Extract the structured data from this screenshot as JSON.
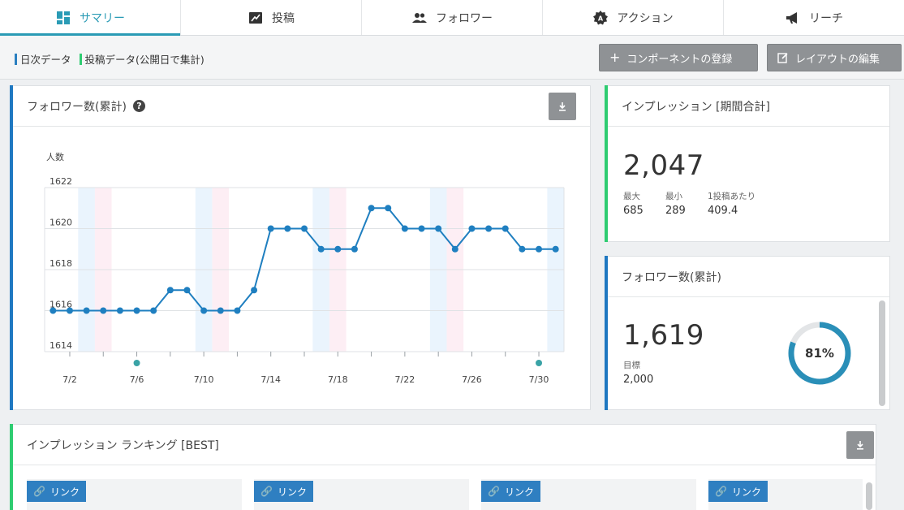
{
  "tabs": [
    {
      "label": "サマリー",
      "icon": "dashboard-icon",
      "active": true
    },
    {
      "label": "投稿",
      "icon": "post-icon",
      "active": false
    },
    {
      "label": "フォロワー",
      "icon": "people-icon",
      "active": false
    },
    {
      "label": "アクション",
      "icon": "action-icon",
      "active": false
    },
    {
      "label": "リーチ",
      "icon": "megaphone-icon",
      "active": false
    }
  ],
  "legend": {
    "daily": "日次データ",
    "posted": "投稿データ(公開日で集計)",
    "daily_color": "#2a7fc0",
    "posted_color": "#2ecc71"
  },
  "buttons": {
    "add_component": "コンポーネントの登録",
    "edit_layout": "レイアウトの編集"
  },
  "follower_chart_card": {
    "title": "フォロワー数(累計)"
  },
  "impressions_card": {
    "title": "インプレッション [期間合計]",
    "total": "2,047",
    "max_label": "最大",
    "max_value": "685",
    "min_label": "最小",
    "min_value": "289",
    "per_post_label": "1投稿あたり",
    "per_post_value": "409.4"
  },
  "followers_card": {
    "title": "フォロワー数(累計)",
    "value": "1,619",
    "goal_label": "目標",
    "goal_value": "2,000",
    "progress_label": "81%",
    "progress": 0.81
  },
  "ranking_card": {
    "title": "インプレッション ランキング [BEST]",
    "link_label": "リンク"
  },
  "chart_data": {
    "type": "line",
    "ylabel": "人数",
    "ylim": [
      1614,
      1622
    ],
    "yticks": [
      1614,
      1616,
      1618,
      1620,
      1622
    ],
    "x_labels": [
      "7/2",
      "7/6",
      "7/10",
      "7/14",
      "7/18",
      "7/22",
      "7/26",
      "7/30"
    ],
    "x_label_days": [
      2,
      6,
      10,
      14,
      18,
      22,
      26,
      30
    ],
    "day_range": [
      1,
      31
    ],
    "days": [
      1,
      2,
      3,
      4,
      5,
      6,
      7,
      8,
      9,
      10,
      11,
      12,
      13,
      14,
      15,
      16,
      17,
      18,
      19,
      20,
      21,
      22,
      23,
      24,
      25,
      26,
      27,
      28,
      29,
      30,
      31
    ],
    "values": [
      1616,
      1616,
      1616,
      1616,
      1616,
      1616,
      1616,
      1617,
      1617,
      1616,
      1616,
      1616,
      1617,
      1620,
      1620,
      1620,
      1619,
      1619,
      1619,
      1621,
      1621,
      1620,
      1620,
      1620,
      1619,
      1620,
      1620,
      1620,
      1619,
      1619,
      1619
    ],
    "post_markers_days": [
      6,
      30
    ],
    "weekend_bands": [
      {
        "sat": 3,
        "sun": 4
      },
      {
        "sat": 10,
        "sun": 11
      },
      {
        "sat": 17,
        "sun": 18
      },
      {
        "sat": 24,
        "sun": 25
      },
      {
        "sat": 31
      }
    ],
    "line_color": "#1f7fc0",
    "saturday_color": "#eaf4fd",
    "sunday_color": "#fdeef4",
    "marker_color": "#3aa3a6"
  }
}
